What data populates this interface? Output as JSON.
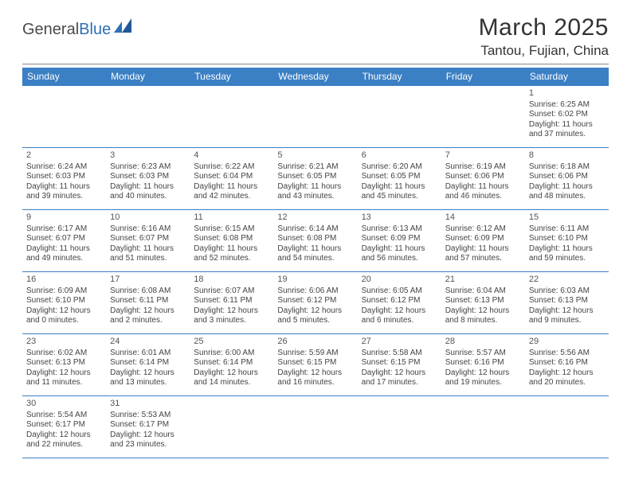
{
  "brand": {
    "part1": "General",
    "part2": "Blue"
  },
  "title": "March 2025",
  "location": "Tantou, Fujian, China",
  "colors": {
    "header_bg": "#3b7fc4",
    "header_text": "#ffffff",
    "cell_border": "#3b7fc4",
    "text": "#444444",
    "brand_blue": "#2d6fb5",
    "brand_gray": "#4a4a4a"
  },
  "dayNames": [
    "Sunday",
    "Monday",
    "Tuesday",
    "Wednesday",
    "Thursday",
    "Friday",
    "Saturday"
  ],
  "weeks": [
    [
      null,
      null,
      null,
      null,
      null,
      null,
      {
        "d": "1",
        "sr": "Sunrise: 6:25 AM",
        "ss": "Sunset: 6:02 PM",
        "dl": "Daylight: 11 hours and 37 minutes."
      }
    ],
    [
      {
        "d": "2",
        "sr": "Sunrise: 6:24 AM",
        "ss": "Sunset: 6:03 PM",
        "dl": "Daylight: 11 hours and 39 minutes."
      },
      {
        "d": "3",
        "sr": "Sunrise: 6:23 AM",
        "ss": "Sunset: 6:03 PM",
        "dl": "Daylight: 11 hours and 40 minutes."
      },
      {
        "d": "4",
        "sr": "Sunrise: 6:22 AM",
        "ss": "Sunset: 6:04 PM",
        "dl": "Daylight: 11 hours and 42 minutes."
      },
      {
        "d": "5",
        "sr": "Sunrise: 6:21 AM",
        "ss": "Sunset: 6:05 PM",
        "dl": "Daylight: 11 hours and 43 minutes."
      },
      {
        "d": "6",
        "sr": "Sunrise: 6:20 AM",
        "ss": "Sunset: 6:05 PM",
        "dl": "Daylight: 11 hours and 45 minutes."
      },
      {
        "d": "7",
        "sr": "Sunrise: 6:19 AM",
        "ss": "Sunset: 6:06 PM",
        "dl": "Daylight: 11 hours and 46 minutes."
      },
      {
        "d": "8",
        "sr": "Sunrise: 6:18 AM",
        "ss": "Sunset: 6:06 PM",
        "dl": "Daylight: 11 hours and 48 minutes."
      }
    ],
    [
      {
        "d": "9",
        "sr": "Sunrise: 6:17 AM",
        "ss": "Sunset: 6:07 PM",
        "dl": "Daylight: 11 hours and 49 minutes."
      },
      {
        "d": "10",
        "sr": "Sunrise: 6:16 AM",
        "ss": "Sunset: 6:07 PM",
        "dl": "Daylight: 11 hours and 51 minutes."
      },
      {
        "d": "11",
        "sr": "Sunrise: 6:15 AM",
        "ss": "Sunset: 6:08 PM",
        "dl": "Daylight: 11 hours and 52 minutes."
      },
      {
        "d": "12",
        "sr": "Sunrise: 6:14 AM",
        "ss": "Sunset: 6:08 PM",
        "dl": "Daylight: 11 hours and 54 minutes."
      },
      {
        "d": "13",
        "sr": "Sunrise: 6:13 AM",
        "ss": "Sunset: 6:09 PM",
        "dl": "Daylight: 11 hours and 56 minutes."
      },
      {
        "d": "14",
        "sr": "Sunrise: 6:12 AM",
        "ss": "Sunset: 6:09 PM",
        "dl": "Daylight: 11 hours and 57 minutes."
      },
      {
        "d": "15",
        "sr": "Sunrise: 6:11 AM",
        "ss": "Sunset: 6:10 PM",
        "dl": "Daylight: 11 hours and 59 minutes."
      }
    ],
    [
      {
        "d": "16",
        "sr": "Sunrise: 6:09 AM",
        "ss": "Sunset: 6:10 PM",
        "dl": "Daylight: 12 hours and 0 minutes."
      },
      {
        "d": "17",
        "sr": "Sunrise: 6:08 AM",
        "ss": "Sunset: 6:11 PM",
        "dl": "Daylight: 12 hours and 2 minutes."
      },
      {
        "d": "18",
        "sr": "Sunrise: 6:07 AM",
        "ss": "Sunset: 6:11 PM",
        "dl": "Daylight: 12 hours and 3 minutes."
      },
      {
        "d": "19",
        "sr": "Sunrise: 6:06 AM",
        "ss": "Sunset: 6:12 PM",
        "dl": "Daylight: 12 hours and 5 minutes."
      },
      {
        "d": "20",
        "sr": "Sunrise: 6:05 AM",
        "ss": "Sunset: 6:12 PM",
        "dl": "Daylight: 12 hours and 6 minutes."
      },
      {
        "d": "21",
        "sr": "Sunrise: 6:04 AM",
        "ss": "Sunset: 6:13 PM",
        "dl": "Daylight: 12 hours and 8 minutes."
      },
      {
        "d": "22",
        "sr": "Sunrise: 6:03 AM",
        "ss": "Sunset: 6:13 PM",
        "dl": "Daylight: 12 hours and 9 minutes."
      }
    ],
    [
      {
        "d": "23",
        "sr": "Sunrise: 6:02 AM",
        "ss": "Sunset: 6:13 PM",
        "dl": "Daylight: 12 hours and 11 minutes."
      },
      {
        "d": "24",
        "sr": "Sunrise: 6:01 AM",
        "ss": "Sunset: 6:14 PM",
        "dl": "Daylight: 12 hours and 13 minutes."
      },
      {
        "d": "25",
        "sr": "Sunrise: 6:00 AM",
        "ss": "Sunset: 6:14 PM",
        "dl": "Daylight: 12 hours and 14 minutes."
      },
      {
        "d": "26",
        "sr": "Sunrise: 5:59 AM",
        "ss": "Sunset: 6:15 PM",
        "dl": "Daylight: 12 hours and 16 minutes."
      },
      {
        "d": "27",
        "sr": "Sunrise: 5:58 AM",
        "ss": "Sunset: 6:15 PM",
        "dl": "Daylight: 12 hours and 17 minutes."
      },
      {
        "d": "28",
        "sr": "Sunrise: 5:57 AM",
        "ss": "Sunset: 6:16 PM",
        "dl": "Daylight: 12 hours and 19 minutes."
      },
      {
        "d": "29",
        "sr": "Sunrise: 5:56 AM",
        "ss": "Sunset: 6:16 PM",
        "dl": "Daylight: 12 hours and 20 minutes."
      }
    ],
    [
      {
        "d": "30",
        "sr": "Sunrise: 5:54 AM",
        "ss": "Sunset: 6:17 PM",
        "dl": "Daylight: 12 hours and 22 minutes."
      },
      {
        "d": "31",
        "sr": "Sunrise: 5:53 AM",
        "ss": "Sunset: 6:17 PM",
        "dl": "Daylight: 12 hours and 23 minutes."
      },
      null,
      null,
      null,
      null,
      null
    ]
  ]
}
